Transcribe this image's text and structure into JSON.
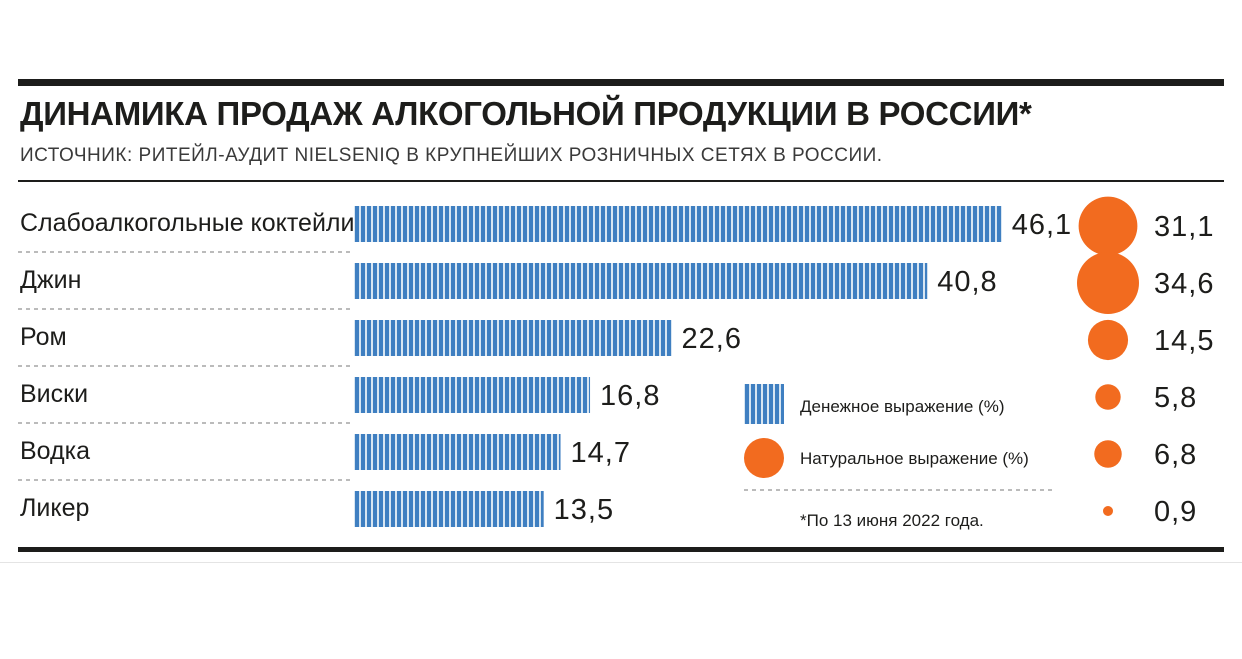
{
  "chart_data": {
    "type": "bar",
    "title": "ДИНАМИКА ПРОДАЖ АЛКОГОЛЬНОЙ ПРОДУКЦИИ В РОССИИ*",
    "subtitle": "ИСТОЧНИК: РИТЕЙЛ-АУДИТ NIELSENIQ В КРУПНЕЙШИХ РОЗНИЧНЫХ СЕТЯХ В РОССИИ.",
    "categories": [
      "Слабоалкогольные коктейли",
      "Джин",
      "Ром",
      "Виски",
      "Водка",
      "Ликер"
    ],
    "series": [
      {
        "name": "Денежное выражение (%)",
        "mark": "bar",
        "color": "#3f7fc1",
        "values": [
          46.1,
          40.8,
          22.6,
          16.8,
          14.7,
          13.5
        ],
        "labels": [
          "46,1",
          "40,8",
          "22,6",
          "16,8",
          "14,7",
          "13,5"
        ]
      },
      {
        "name": "Натуральное выражение (%)",
        "mark": "bubble",
        "color": "#f26b1f",
        "values": [
          31.1,
          34.6,
          14.5,
          5.8,
          6.8,
          0.9
        ],
        "labels": [
          "31,1",
          "34,6",
          "14,5",
          "5,8",
          "6,8",
          "0,9"
        ]
      }
    ],
    "legend_position": "bottom-right",
    "note": "*По 13 июня 2022 года."
  }
}
